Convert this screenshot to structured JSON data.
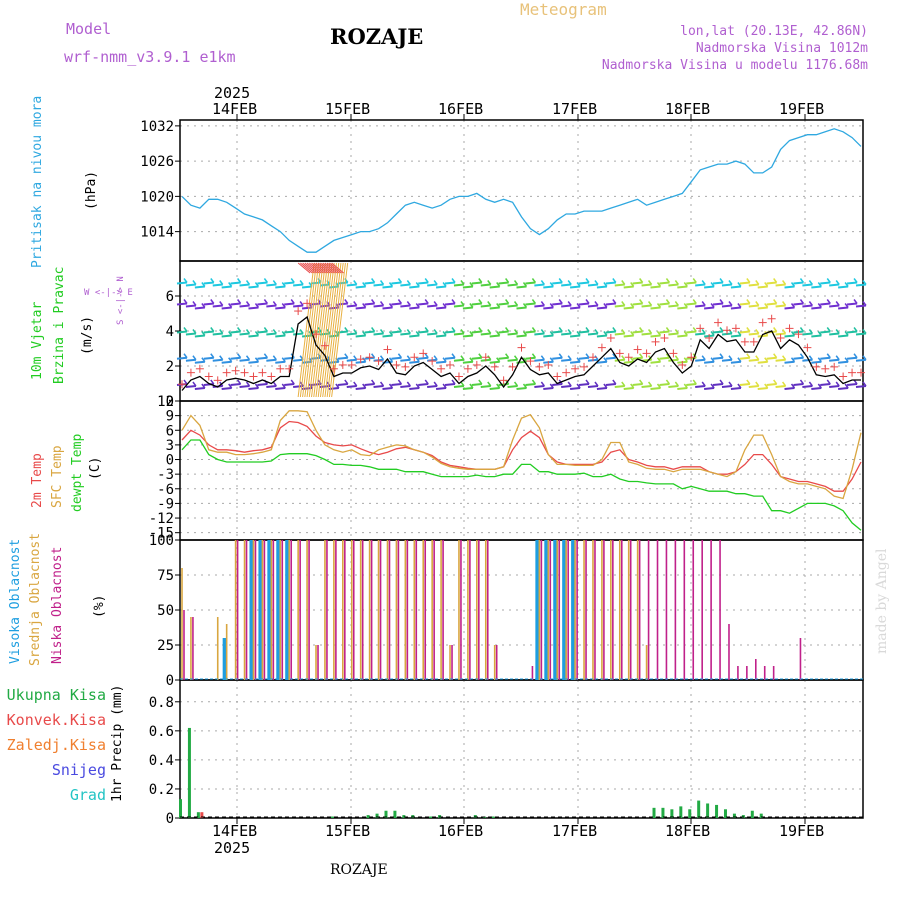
{
  "header": {
    "model_label": "Model",
    "model_name": "wrf-nmm_v3.9.1 e1km",
    "station": "ROZAJE",
    "meteogram": "Meteogram",
    "lonlat": "lon,lat (20.13E, 42.86N)",
    "elevation": "Nadmorska Visina 1012m",
    "model_elevation": "Nadmorska Visina u modelu 1176.68m"
  },
  "top_axis": {
    "year": "2025",
    "dates": [
      "14FEB",
      "15FEB",
      "16FEB",
      "17FEB",
      "18FEB",
      "19FEB"
    ]
  },
  "bottom_axis": {
    "year": "2025",
    "dates": [
      "14FEB",
      "15FEB",
      "16FEB",
      "17FEB",
      "18FEB",
      "19FEB"
    ]
  },
  "footer_station": "ROZAJE",
  "credit": "made by Angel",
  "panels": {
    "pressure": {
      "label1": "Pritisak na nivou mora",
      "label2": "(hPa)"
    },
    "wind": {
      "label1": "10m Vjetar",
      "label2": "Brzina i Pravac",
      "label3": "(m/s)",
      "compass": "W <-|-> E",
      "compass2": "S <-|-> N"
    },
    "temp": {
      "label1": "2m Temp",
      "label2": "SFC Temp",
      "label3": "dewpt Temp",
      "label4": "(C)"
    },
    "cloud": {
      "label1": "Visoka Oblacnost",
      "label2": "Srednja Oblacnost",
      "label3": "Niska Oblacnost",
      "label4": "(%)"
    },
    "precip": {
      "label": "1hr Precip (mm)",
      "legend": [
        "Ukupna Kisa",
        "Konvek.Kisa",
        "Zaledj.Kisa",
        "Snijeg",
        "Grad"
      ]
    }
  },
  "colors": {
    "pressure": "#2fa8e0",
    "temp2m": "#e84a4a",
    "sfc": "#d9a640",
    "dewpt": "#22cc22",
    "cloud_high": "#1e9ee0",
    "cloud_mid": "#d9a640",
    "cloud_low": "#c0208a",
    "precip_total": "#22aa44",
    "precip_conv": "#e84a4a",
    "precip_frz": "#f08030",
    "snow": "#4a4ae0",
    "hail": "#22c4c4",
    "grid": "#aaaaaa"
  },
  "chart_data": [
    {
      "type": "line",
      "name": "pressure",
      "x_start": "13FEB 18:00",
      "x_end": "19FEB 12:00",
      "ylim": [
        1009,
        1033
      ],
      "yticks": [
        1014,
        1020,
        1026,
        1032
      ],
      "series": [
        {
          "name": "Pritisak na nivou mora",
          "values": [
            1020,
            1018.5,
            1018,
            1019.5,
            1019.5,
            1019,
            1018,
            1017,
            1016.5,
            1016,
            1015,
            1014,
            1012.5,
            1011.5,
            1010.5,
            1010.5,
            1011.5,
            1012.5,
            1013,
            1013.5,
            1014,
            1014,
            1014.5,
            1015.5,
            1017,
            1018.5,
            1019,
            1018.5,
            1018,
            1018.5,
            1019.5,
            1020,
            1020,
            1020.5,
            1019.5,
            1019,
            1019.5,
            1019,
            1016.5,
            1014.5,
            1013.5,
            1014.5,
            1016,
            1017,
            1017,
            1017.5,
            1017.5,
            1017.5,
            1018,
            1018.5,
            1019,
            1019.5,
            1018.5,
            1019,
            1019.5,
            1020,
            1020.5,
            1022.5,
            1024.5,
            1025,
            1025.5,
            1025.5,
            1026,
            1025.5,
            1024,
            1024,
            1025,
            1028,
            1029.5,
            1030,
            1030.5,
            1030.5,
            1031,
            1031.5,
            1031,
            1030,
            1028.5
          ]
        }
      ]
    },
    {
      "type": "line",
      "name": "wind",
      "ylim": [
        0,
        8
      ],
      "yticks": [
        0,
        2,
        4,
        6
      ],
      "series": [
        {
          "name": "10m Vjetar",
          "values": [
            0.6,
            1.2,
            1.4,
            1.0,
            0.8,
            1.2,
            1.3,
            1.2,
            1.0,
            1.2,
            1.0,
            1.4,
            1.4,
            4.4,
            4.8,
            3.2,
            2.6,
            1.4,
            1.6,
            1.6,
            1.9,
            2.0,
            1.8,
            2.4,
            1.6,
            1.5,
            2.0,
            2.2,
            1.8,
            1.4,
            1.6,
            1.0,
            1.4,
            1.6,
            2.0,
            1.5,
            0.8,
            1.5,
            2.5,
            1.8,
            1.5,
            1.6,
            1.0,
            1.2,
            1.4,
            1.5,
            2.0,
            2.5,
            3.0,
            2.2,
            2.0,
            2.4,
            2.2,
            2.8,
            3.0,
            2.2,
            1.6,
            2.0,
            3.5,
            3.0,
            3.8,
            3.4,
            3.5,
            2.8,
            2.8,
            3.8,
            4.0,
            3.0,
            3.5,
            3.2,
            2.5,
            1.5,
            1.4,
            1.5,
            1.0,
            1.2,
            1.2
          ]
        }
      ]
    },
    {
      "type": "line",
      "name": "temperature",
      "ylim": [
        -16.5,
        12
      ],
      "yticks": [
        -15,
        -12,
        -9,
        -6,
        -3,
        0,
        3,
        6,
        9,
        12
      ],
      "series": [
        {
          "name": "2m Temp",
          "values": [
            4,
            6,
            5,
            3,
            2,
            2,
            1.8,
            1.5,
            1.8,
            2,
            2.5,
            6.5,
            7.8,
            7.6,
            6.8,
            4.8,
            3.5,
            3,
            2.8,
            3,
            2.2,
            1.5,
            1,
            1.5,
            2.2,
            2.5,
            2,
            1.5,
            0.8,
            -0.5,
            -1.2,
            -1.5,
            -1.8,
            -2,
            -2,
            -2,
            -1.5,
            2,
            4.5,
            5.8,
            4.5,
            1,
            -0.5,
            -1,
            -1,
            -1,
            -1,
            -0.5,
            1.5,
            2,
            0,
            -0.5,
            -1.2,
            -1.5,
            -1.5,
            -2,
            -1.5,
            -1.5,
            -1.5,
            -2.5,
            -3,
            -3,
            -2.5,
            -1,
            1,
            1,
            -1,
            -3.5,
            -4,
            -4.5,
            -4.5,
            -5,
            -5.5,
            -6.5,
            -6.5,
            -4,
            -0.5
          ]
        },
        {
          "name": "SFC Temp",
          "values": [
            6,
            9,
            7,
            2,
            1.5,
            1.5,
            1,
            1,
            1.2,
            1.5,
            2,
            8,
            10,
            10,
            9.8,
            6,
            3,
            2,
            1.5,
            2,
            1,
            0.8,
            2,
            2.5,
            3,
            2.8,
            2,
            1.5,
            0.5,
            -0.8,
            -1.5,
            -1.8,
            -2,
            -2,
            -2,
            -2,
            -1.5,
            4,
            8.5,
            9.2,
            6.5,
            1,
            -1,
            -1,
            -1.2,
            -1.2,
            -1.2,
            0,
            3.5,
            3.5,
            -0.5,
            -1,
            -1.8,
            -2,
            -2,
            -2.5,
            -2,
            -2,
            -2,
            -2.5,
            -3,
            -3.5,
            -2.5,
            2,
            5,
            5,
            1,
            -3.5,
            -4.5,
            -5,
            -5,
            -5.5,
            -6,
            -7.5,
            -8,
            -2,
            5.5
          ]
        },
        {
          "name": "dewpt Temp",
          "values": [
            2,
            4,
            4,
            1,
            0,
            -0.5,
            -0.5,
            -0.5,
            -0.5,
            -0.5,
            -0.3,
            1,
            1.2,
            1.2,
            1.2,
            0.8,
            0,
            -1,
            -1,
            -1.2,
            -1.2,
            -1.5,
            -2,
            -2,
            -2,
            -2.5,
            -2.5,
            -2.5,
            -3,
            -3.5,
            -3.5,
            -3.5,
            -3.5,
            -3.2,
            -3.5,
            -3.5,
            -3,
            -3,
            -1,
            -1,
            -2.5,
            -2.5,
            -3,
            -3,
            -3,
            -2.8,
            -3.5,
            -3.5,
            -3,
            -4,
            -4.5,
            -4.5,
            -4.8,
            -5,
            -5,
            -5,
            -6,
            -5.5,
            -6,
            -6.5,
            -6.5,
            -6.5,
            -7,
            -7,
            -7.5,
            -7.5,
            -10.5,
            -10.5,
            -11,
            -10,
            -9,
            -9,
            -9,
            -9.5,
            -10.5,
            -13,
            -14.5
          ]
        }
      ]
    },
    {
      "type": "bar",
      "name": "cloud_cover",
      "ylim": [
        0,
        100
      ],
      "yticks": [
        0,
        25,
        50,
        75,
        100
      ],
      "series": [
        {
          "name": "Visoka Oblacnost",
          "values": [
            0,
            0,
            0,
            0,
            0,
            30,
            0,
            0,
            100,
            100,
            100,
            100,
            100,
            0,
            0,
            0,
            0,
            0,
            0,
            0,
            0,
            0,
            0,
            0,
            0,
            0,
            0,
            0,
            0,
            0,
            0,
            0,
            0,
            0,
            0,
            0,
            0,
            0,
            0,
            0,
            100,
            100,
            100,
            100,
            100,
            0,
            0,
            0,
            0,
            0,
            0,
            0,
            0,
            0,
            0,
            0,
            0,
            0,
            0,
            0,
            0,
            0,
            0,
            0,
            0,
            0,
            0,
            0,
            0,
            0,
            0,
            0,
            0,
            0,
            0,
            0,
            0
          ]
        },
        {
          "name": "Srednja Oblacnost",
          "values": [
            80,
            45,
            0,
            0,
            45,
            40,
            100,
            100,
            100,
            100,
            100,
            100,
            100,
            100,
            100,
            25,
            100,
            100,
            100,
            100,
            100,
            100,
            100,
            100,
            100,
            100,
            100,
            100,
            100,
            100,
            25,
            100,
            100,
            100,
            100,
            25,
            0,
            0,
            0,
            0,
            100,
            100,
            100,
            100,
            100,
            100,
            100,
            100,
            100,
            100,
            100,
            100,
            25,
            0,
            0,
            0,
            0,
            0,
            0,
            0,
            0,
            0,
            0,
            0,
            0,
            0,
            0,
            0,
            0,
            0,
            0,
            0,
            0,
            0,
            0,
            0,
            0
          ]
        },
        {
          "name": "Niska Oblacnost",
          "values": [
            50,
            45,
            0,
            0,
            0,
            0,
            100,
            100,
            100,
            100,
            100,
            100,
            100,
            100,
            100,
            25,
            100,
            100,
            100,
            100,
            100,
            100,
            100,
            100,
            100,
            100,
            100,
            100,
            100,
            100,
            25,
            100,
            100,
            100,
            100,
            25,
            0,
            0,
            0,
            10,
            100,
            100,
            100,
            100,
            100,
            100,
            100,
            100,
            100,
            100,
            100,
            100,
            100,
            100,
            100,
            100,
            100,
            100,
            100,
            100,
            100,
            40,
            10,
            10,
            15,
            10,
            10,
            0,
            0,
            30,
            0,
            0,
            0,
            0,
            0,
            0,
            0
          ]
        }
      ]
    },
    {
      "type": "bar",
      "name": "precipitation",
      "ylim": [
        0,
        0.95
      ],
      "yticks": [
        0,
        0.2,
        0.4,
        0.6,
        0.8
      ],
      "series": [
        {
          "name": "Ukupna Kisa",
          "values": [
            0.13,
            0.62,
            0.04,
            0,
            0,
            0,
            0,
            0,
            0,
            0,
            0,
            0,
            0,
            0,
            0,
            0,
            0,
            0.01,
            0,
            0,
            0,
            0.02,
            0.03,
            0.05,
            0.05,
            0.02,
            0.02,
            0,
            0.01,
            0.02,
            0,
            0,
            0,
            0.02,
            0.01,
            0.01,
            0,
            0,
            0,
            0,
            0,
            0,
            0,
            0,
            0,
            0,
            0,
            0,
            0,
            0,
            0,
            0,
            0,
            0.07,
            0.07,
            0.06,
            0.08,
            0.06,
            0.12,
            0.1,
            0.09,
            0.06,
            0.03,
            0.02,
            0.05,
            0.03,
            0,
            0,
            0,
            0,
            0,
            0,
            0,
            0,
            0,
            0,
            0
          ]
        },
        {
          "name": "Konvek.Kisa",
          "values": [
            0,
            0,
            0.04,
            0,
            0,
            0,
            0,
            0,
            0,
            0,
            0,
            0,
            0,
            0,
            0,
            0,
            0,
            0,
            0,
            0,
            0,
            0,
            0,
            0,
            0,
            0,
            0,
            0,
            0,
            0,
            0,
            0,
            0,
            0,
            0,
            0,
            0,
            0,
            0,
            0,
            0,
            0,
            0,
            0,
            0,
            0,
            0,
            0,
            0,
            0,
            0,
            0,
            0,
            0,
            0,
            0,
            0,
            0,
            0,
            0,
            0,
            0,
            0,
            0,
            0,
            0,
            0,
            0,
            0,
            0,
            0,
            0,
            0,
            0,
            0,
            0,
            0
          ]
        }
      ]
    }
  ]
}
